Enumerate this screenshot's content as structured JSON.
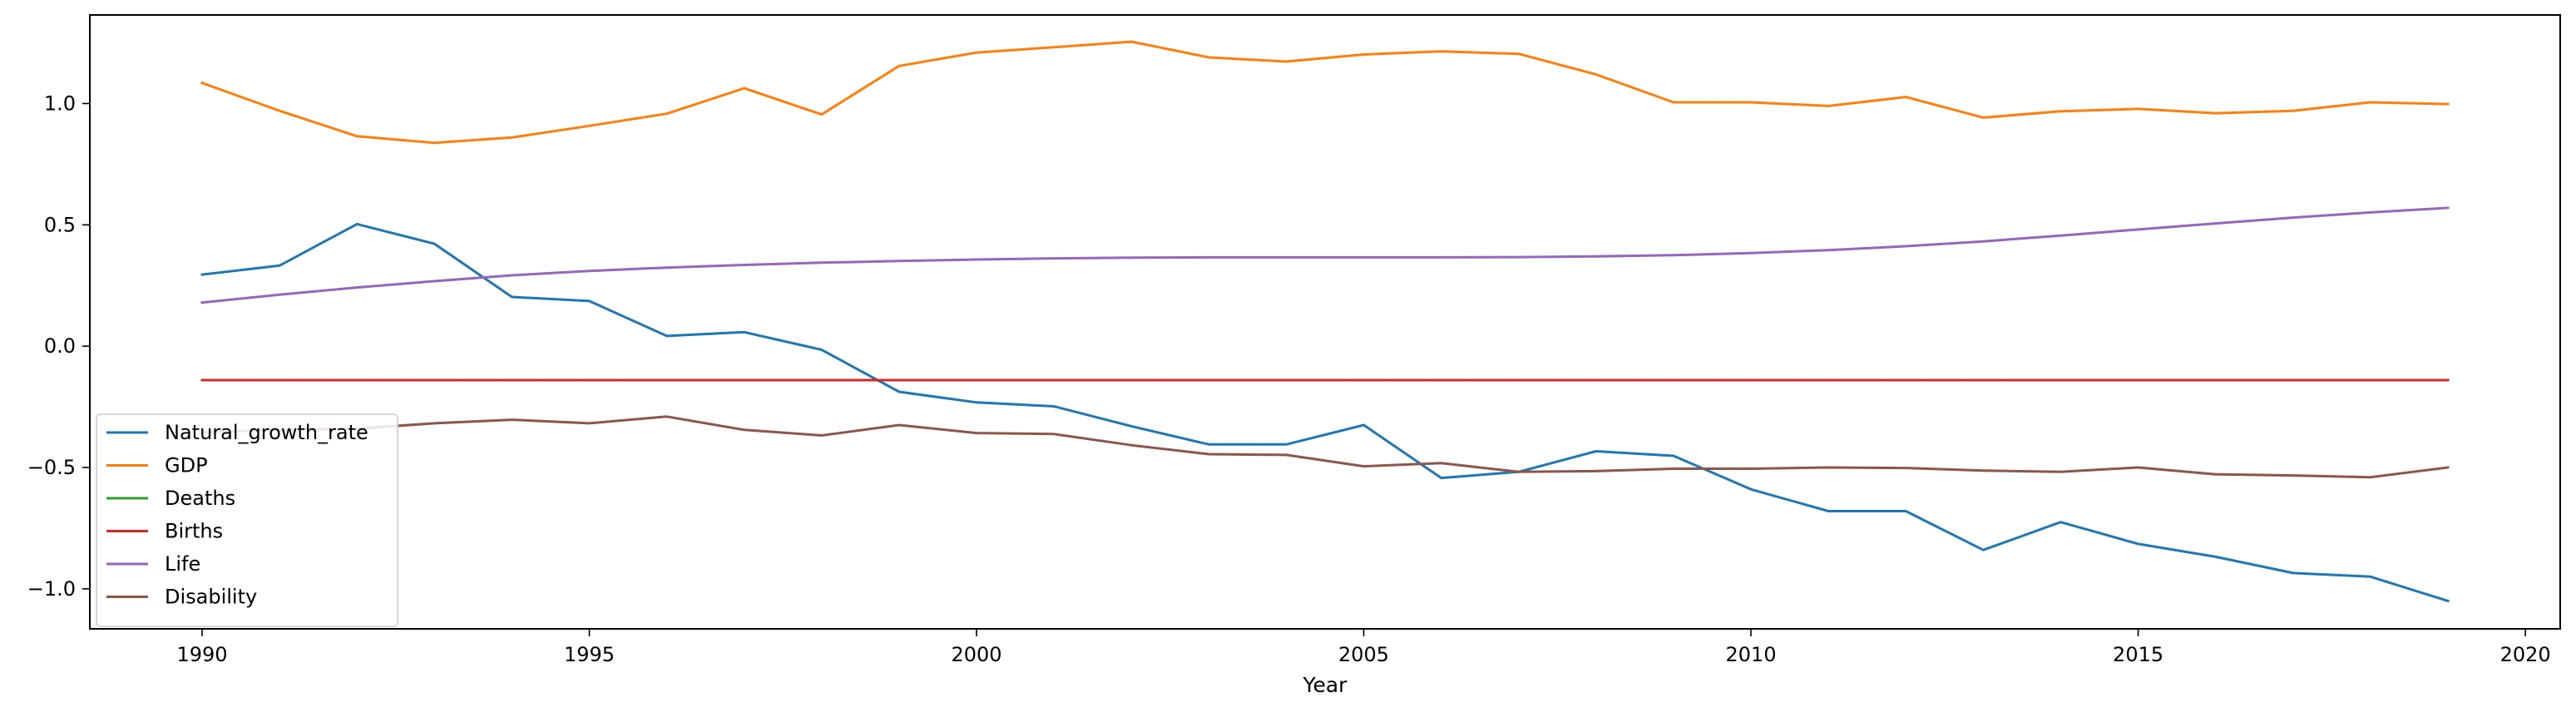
{
  "chart_data": {
    "type": "line",
    "title": "",
    "xlabel": "Year",
    "ylabel": "",
    "xlim": [
      1988.55,
      2020.45
    ],
    "ylim": [
      -1.165,
      1.365
    ],
    "xticks": [
      1990,
      1995,
      2000,
      2005,
      2010,
      2015,
      2020
    ],
    "xtick_labels": [
      "1990",
      "1995",
      "2000",
      "2005",
      "2010",
      "2015",
      "2020"
    ],
    "yticks": [
      -1.0,
      -0.5,
      0.0,
      0.5,
      1.0
    ],
    "ytick_labels": [
      "−1.0",
      "−0.5",
      "0.0",
      "0.5",
      "1.0"
    ],
    "grid": false,
    "legend_position": "lower-left",
    "x": [
      1990,
      1991,
      1992,
      1993,
      1994,
      1995,
      1996,
      1997,
      1998,
      1999,
      2000,
      2001,
      2002,
      2003,
      2004,
      2005,
      2006,
      2007,
      2008,
      2009,
      2010,
      2011,
      2012,
      2013,
      2014,
      2015,
      2016,
      2017,
      2018,
      2019
    ],
    "series": [
      {
        "name": "Natural_growth_rate",
        "color": "#1f77b4",
        "values": [
          0.295,
          0.332,
          0.503,
          0.422,
          0.203,
          0.186,
          0.042,
          0.058,
          -0.015,
          -0.188,
          -0.232,
          -0.248,
          -0.33,
          -0.405,
          -0.405,
          -0.325,
          -0.543,
          -0.518,
          -0.433,
          -0.452,
          -0.59,
          -0.68,
          -0.68,
          -0.84,
          -0.725,
          -0.815,
          -0.868,
          -0.935,
          -0.95,
          -1.05
        ]
      },
      {
        "name": "GDP",
        "color": "#ff7f0e",
        "values": [
          1.085,
          0.97,
          0.865,
          0.838,
          0.86,
          0.908,
          0.958,
          1.063,
          0.955,
          1.155,
          1.21,
          1.232,
          1.255,
          1.19,
          1.173,
          1.202,
          1.215,
          1.205,
          1.12,
          1.005,
          1.005,
          0.99,
          1.027,
          0.942,
          0.968,
          0.978,
          0.96,
          0.97,
          1.005,
          0.998
        ]
      },
      {
        "name": "Deaths",
        "color": "#2ca02c",
        "values": [
          -0.14,
          -0.14,
          -0.14,
          -0.14,
          -0.14,
          -0.14,
          -0.14,
          -0.14,
          -0.14,
          -0.14,
          -0.14,
          -0.14,
          -0.14,
          -0.14,
          -0.14,
          -0.14,
          -0.14,
          -0.14,
          -0.14,
          -0.14,
          -0.14,
          -0.14,
          -0.14,
          -0.14,
          -0.14,
          -0.14,
          -0.14,
          -0.14,
          -0.14,
          -0.14
        ]
      },
      {
        "name": "Births",
        "color": "#d62728",
        "values": [
          -0.14,
          -0.14,
          -0.14,
          -0.14,
          -0.14,
          -0.14,
          -0.14,
          -0.14,
          -0.14,
          -0.14,
          -0.14,
          -0.14,
          -0.14,
          -0.14,
          -0.14,
          -0.14,
          -0.14,
          -0.14,
          -0.14,
          -0.14,
          -0.14,
          -0.14,
          -0.14,
          -0.14,
          -0.14,
          -0.14,
          -0.14,
          -0.14,
          -0.14,
          -0.14
        ]
      },
      {
        "name": "Life",
        "color": "#9467bd",
        "values": [
          0.18,
          0.212,
          0.242,
          0.268,
          0.292,
          0.31,
          0.324,
          0.335,
          0.344,
          0.351,
          0.357,
          0.362,
          0.365,
          0.366,
          0.366,
          0.366,
          0.366,
          0.367,
          0.37,
          0.375,
          0.384,
          0.396,
          0.412,
          0.432,
          0.456,
          0.481,
          0.506,
          0.53,
          0.551,
          0.57
        ]
      },
      {
        "name": "Disability",
        "color": "#8c564b",
        "values": [
          -0.355,
          -0.345,
          -0.34,
          -0.318,
          -0.303,
          -0.318,
          -0.29,
          -0.345,
          -0.368,
          -0.325,
          -0.358,
          -0.362,
          -0.408,
          -0.445,
          -0.448,
          -0.495,
          -0.482,
          -0.518,
          -0.515,
          -0.505,
          -0.505,
          -0.5,
          -0.502,
          -0.513,
          -0.518,
          -0.5,
          -0.528,
          -0.533,
          -0.54,
          -0.5
        ]
      }
    ]
  }
}
